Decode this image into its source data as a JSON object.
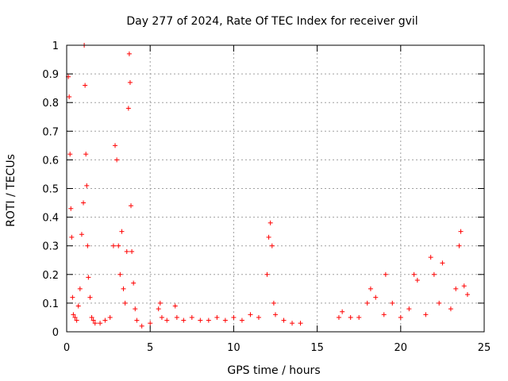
{
  "chart_data": {
    "type": "scatter",
    "title": "Day 277 of 2024, Rate Of TEC Index for receiver gvil",
    "xlabel": "GPS time / hours",
    "ylabel": "ROTI / TECUs",
    "xlim": [
      0,
      25
    ],
    "ylim": [
      0,
      1
    ],
    "xticks": [
      0,
      5,
      10,
      15,
      20,
      25
    ],
    "yticks": [
      0,
      0.1,
      0.2,
      0.3,
      0.4,
      0.5,
      0.6,
      0.7,
      0.8,
      0.9,
      1
    ],
    "ytick_labels": [
      "0",
      "0.1",
      "0.2",
      "0.3",
      "0.4",
      "0.5",
      "0.6",
      "0.7",
      "0.8",
      "0.9",
      "1"
    ],
    "grid": true,
    "marker": "+",
    "color": "#ff0000",
    "series": [
      {
        "name": "ROTI",
        "x": [
          0.1,
          0.15,
          0.2,
          0.25,
          0.3,
          0.35,
          0.4,
          0.5,
          0.6,
          0.7,
          0.8,
          0.9,
          1.0,
          1.05,
          1.1,
          1.15,
          1.2,
          1.25,
          1.3,
          1.4,
          1.5,
          1.6,
          1.7,
          2.0,
          2.3,
          2.6,
          2.8,
          2.9,
          3.0,
          3.1,
          3.2,
          3.3,
          3.4,
          3.5,
          3.6,
          3.7,
          3.75,
          3.8,
          3.85,
          3.9,
          4.0,
          4.1,
          4.2,
          4.5,
          5.0,
          5.5,
          5.6,
          5.7,
          6.0,
          6.5,
          6.6,
          7.0,
          7.5,
          8.0,
          8.5,
          9.0,
          9.5,
          10.0,
          10.5,
          11.0,
          11.5,
          12.0,
          12.1,
          12.2,
          12.3,
          12.4,
          12.5,
          13.0,
          13.5,
          14.0,
          16.3,
          16.5,
          17.0,
          17.5,
          18.0,
          18.2,
          18.5,
          19.0,
          19.1,
          19.5,
          20.0,
          20.5,
          20.8,
          21.0,
          21.5,
          21.8,
          22.0,
          22.3,
          22.5,
          23.0,
          23.3,
          23.5,
          23.6,
          23.8,
          24.0
        ],
        "y": [
          0.89,
          0.82,
          0.62,
          0.43,
          0.33,
          0.12,
          0.06,
          0.05,
          0.04,
          0.09,
          0.15,
          0.34,
          0.45,
          1.0,
          0.86,
          0.62,
          0.51,
          0.3,
          0.19,
          0.12,
          0.05,
          0.04,
          0.03,
          0.03,
          0.04,
          0.05,
          0.3,
          0.65,
          0.6,
          0.3,
          0.2,
          0.35,
          0.15,
          0.1,
          0.28,
          0.78,
          0.97,
          0.87,
          0.44,
          0.28,
          0.17,
          0.08,
          0.04,
          0.02,
          0.03,
          0.08,
          0.1,
          0.05,
          0.04,
          0.09,
          0.05,
          0.04,
          0.05,
          0.04,
          0.04,
          0.05,
          0.04,
          0.05,
          0.04,
          0.06,
          0.05,
          0.2,
          0.33,
          0.38,
          0.3,
          0.1,
          0.06,
          0.04,
          0.03,
          0.03,
          0.05,
          0.07,
          0.05,
          0.05,
          0.1,
          0.15,
          0.12,
          0.06,
          0.2,
          0.1,
          0.05,
          0.08,
          0.2,
          0.18,
          0.06,
          0.26,
          0.2,
          0.1,
          0.24,
          0.08,
          0.15,
          0.3,
          0.35,
          0.16,
          0.13
        ]
      }
    ]
  }
}
